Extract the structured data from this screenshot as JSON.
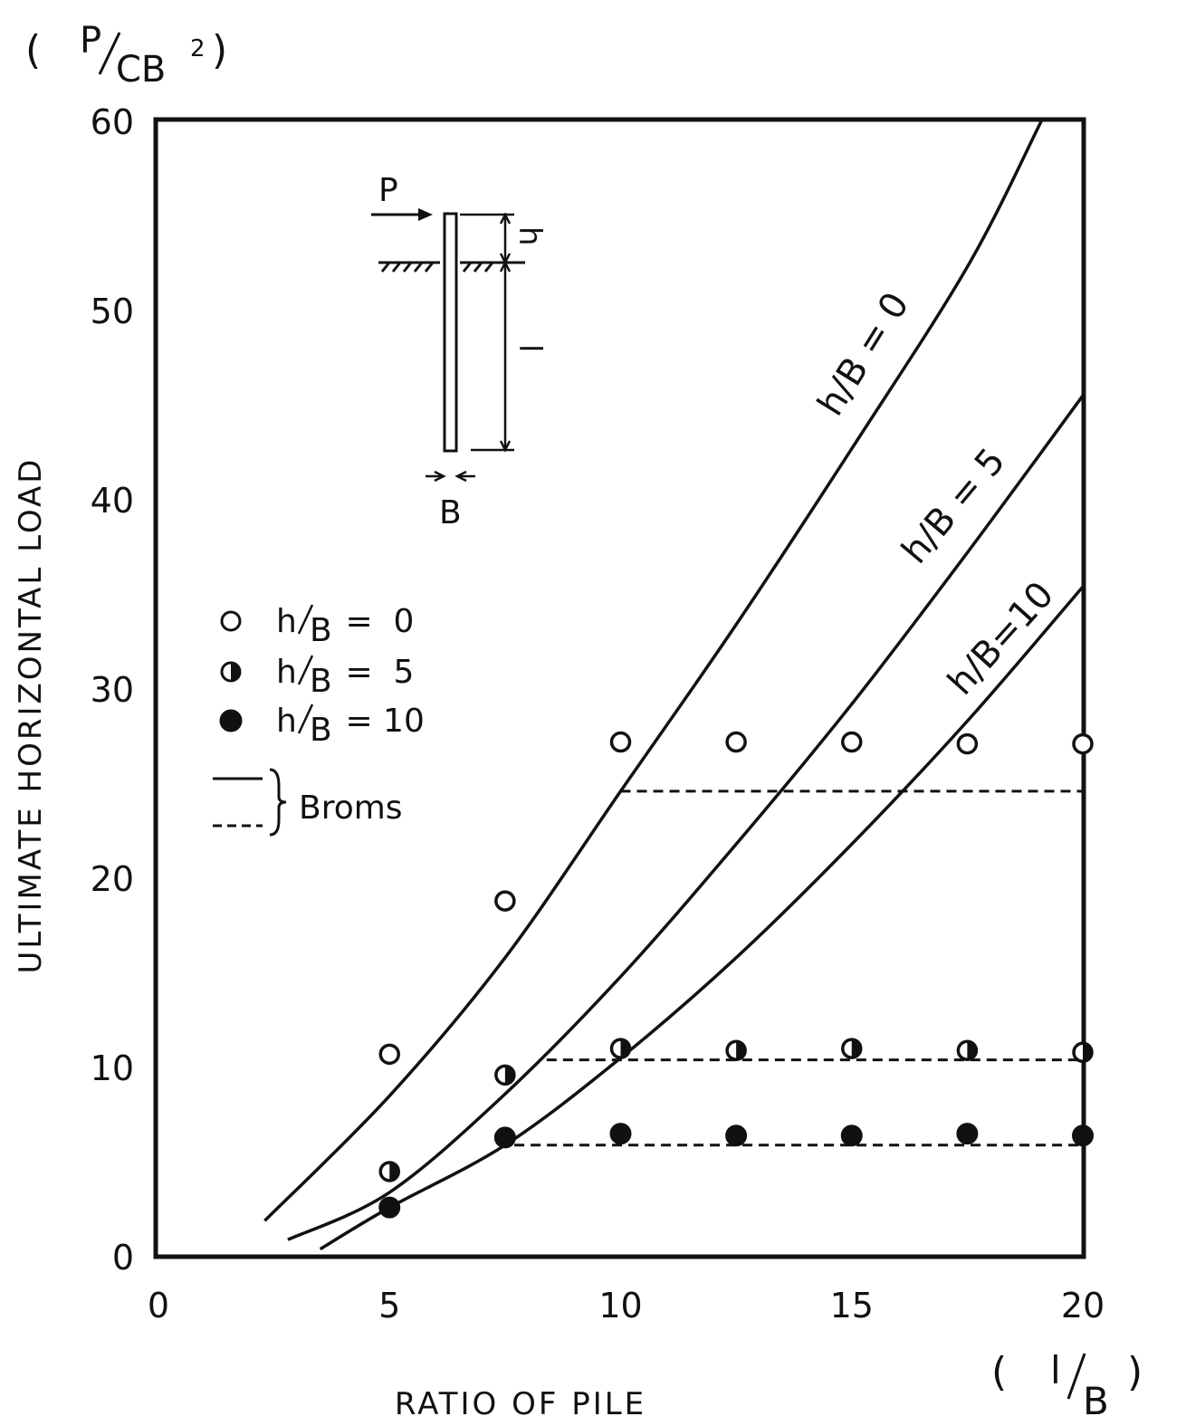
{
  "chart_data": {
    "type": "line",
    "xlabel": "RATIO OF PILE",
    "xunit": {
      "pre": "( ",
      "num": "l",
      "den": "B",
      "post": " )"
    },
    "ylabel": "ULTIMATE HORIZONTAL LOAD",
    "yunit": {
      "pre": "( ",
      "num": "P",
      "den": "CB",
      "sup": "2",
      "post": " )"
    },
    "xlim": [
      0,
      20
    ],
    "ylim": [
      0,
      60
    ],
    "xticks": [
      0,
      5,
      10,
      15,
      20
    ],
    "yticks": [
      0,
      10,
      20,
      30,
      40,
      50,
      60
    ],
    "grid": false,
    "legend_position": "left",
    "series": [
      {
        "name": "h/B = 0",
        "label_text": "h/B = 0",
        "marker": "open",
        "points": [
          [
            5,
            10.7
          ],
          [
            7.5,
            18.8
          ],
          [
            10,
            27.2
          ],
          [
            12.5,
            27.2
          ],
          [
            15,
            27.2
          ],
          [
            17.5,
            27.1
          ],
          [
            20,
            27.1
          ]
        ],
        "curve": [
          [
            2.3,
            1.9
          ],
          [
            5,
            8.5
          ],
          [
            7.5,
            15.8
          ],
          [
            10,
            24.6
          ],
          [
            12.5,
            33.4
          ],
          [
            15,
            42.7
          ],
          [
            17.5,
            52.3
          ],
          [
            19.1,
            60
          ]
        ],
        "plateau": {
          "x": [
            10,
            20
          ],
          "y": 24.6
        }
      },
      {
        "name": "h/B = 5",
        "label_text": "h/B = 5",
        "marker": "half",
        "points": [
          [
            5,
            4.5
          ],
          [
            7.5,
            9.6
          ],
          [
            10,
            11.0
          ],
          [
            12.5,
            10.9
          ],
          [
            15,
            11.0
          ],
          [
            17.5,
            10.9
          ],
          [
            20,
            10.8
          ]
        ],
        "curve": [
          [
            2.8,
            0.9
          ],
          [
            5,
            3.4
          ],
          [
            7.5,
            8.6
          ],
          [
            10,
            14.8
          ],
          [
            12.5,
            21.8
          ],
          [
            15,
            29.2
          ],
          [
            17.5,
            37.2
          ],
          [
            20,
            45.5
          ]
        ],
        "plateau": {
          "x": [
            8.4,
            20
          ],
          "y": 10.4
        }
      },
      {
        "name": "h/B = 10",
        "label_text": "h/B=10",
        "marker": "filled",
        "points": [
          [
            5,
            2.6
          ],
          [
            7.5,
            6.3
          ],
          [
            10,
            6.5
          ],
          [
            12.5,
            6.4
          ],
          [
            15,
            6.4
          ],
          [
            17.5,
            6.5
          ],
          [
            20,
            6.4
          ]
        ],
        "curve": [
          [
            3.5,
            0.4
          ],
          [
            5,
            2.6
          ],
          [
            7.5,
            5.9
          ],
          [
            10,
            10.5
          ],
          [
            12.5,
            15.8
          ],
          [
            15,
            21.8
          ],
          [
            17.5,
            28.3
          ],
          [
            20,
            35.4
          ]
        ],
        "plateau": {
          "x": [
            7.7,
            20
          ],
          "y": 5.9
        }
      }
    ],
    "legend": {
      "markers": [
        {
          "num": "h",
          "den": "B",
          "rest": " =  0",
          "marker": "open"
        },
        {
          "num": "h",
          "den": "B",
          "rest": " =  5",
          "marker": "half"
        },
        {
          "num": "h",
          "den": "B",
          "rest": " = 10",
          "marker": "filled"
        }
      ],
      "lines_label": "Broms"
    },
    "inset_labels": {
      "load": "P",
      "height": "h",
      "length": "l",
      "width": "B"
    }
  }
}
